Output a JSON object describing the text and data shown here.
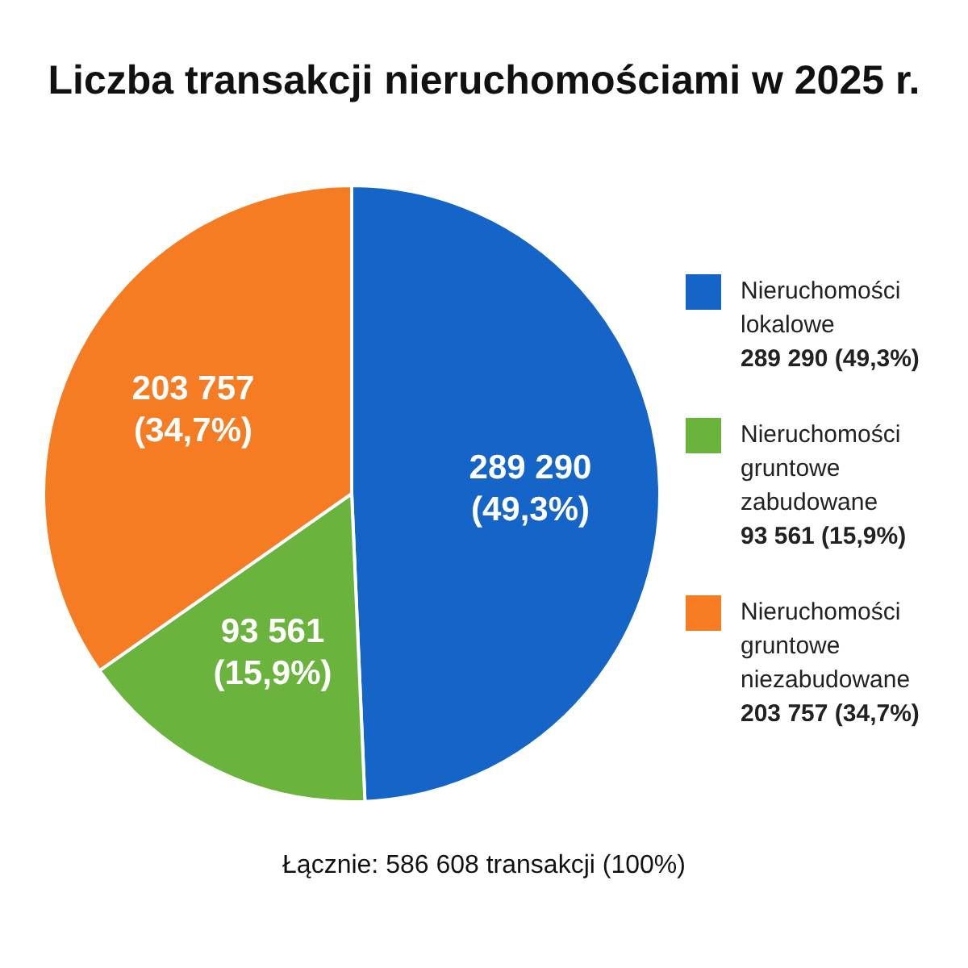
{
  "chart_data": {
    "type": "pie",
    "title": "Liczba transakcji nieruchomościami w 2025 r.",
    "categories": [
      "Nieruchomości lokalowe",
      "Nieruchomości gruntowe zabudowane",
      "Nieruchomości gruntowe niezabudowane"
    ],
    "values": [
      289290,
      93561,
      203757
    ],
    "colors": [
      "#1565c8",
      "#6ab43e",
      "#f57c22"
    ],
    "value_labels": [
      "289 290 (49,3%)",
      "93 561 (15,9%)",
      "203 757 (34,7%)"
    ],
    "legend": "right",
    "annotations": [
      "Łącznie: 586 608 transakcji (100%)"
    ]
  }
}
